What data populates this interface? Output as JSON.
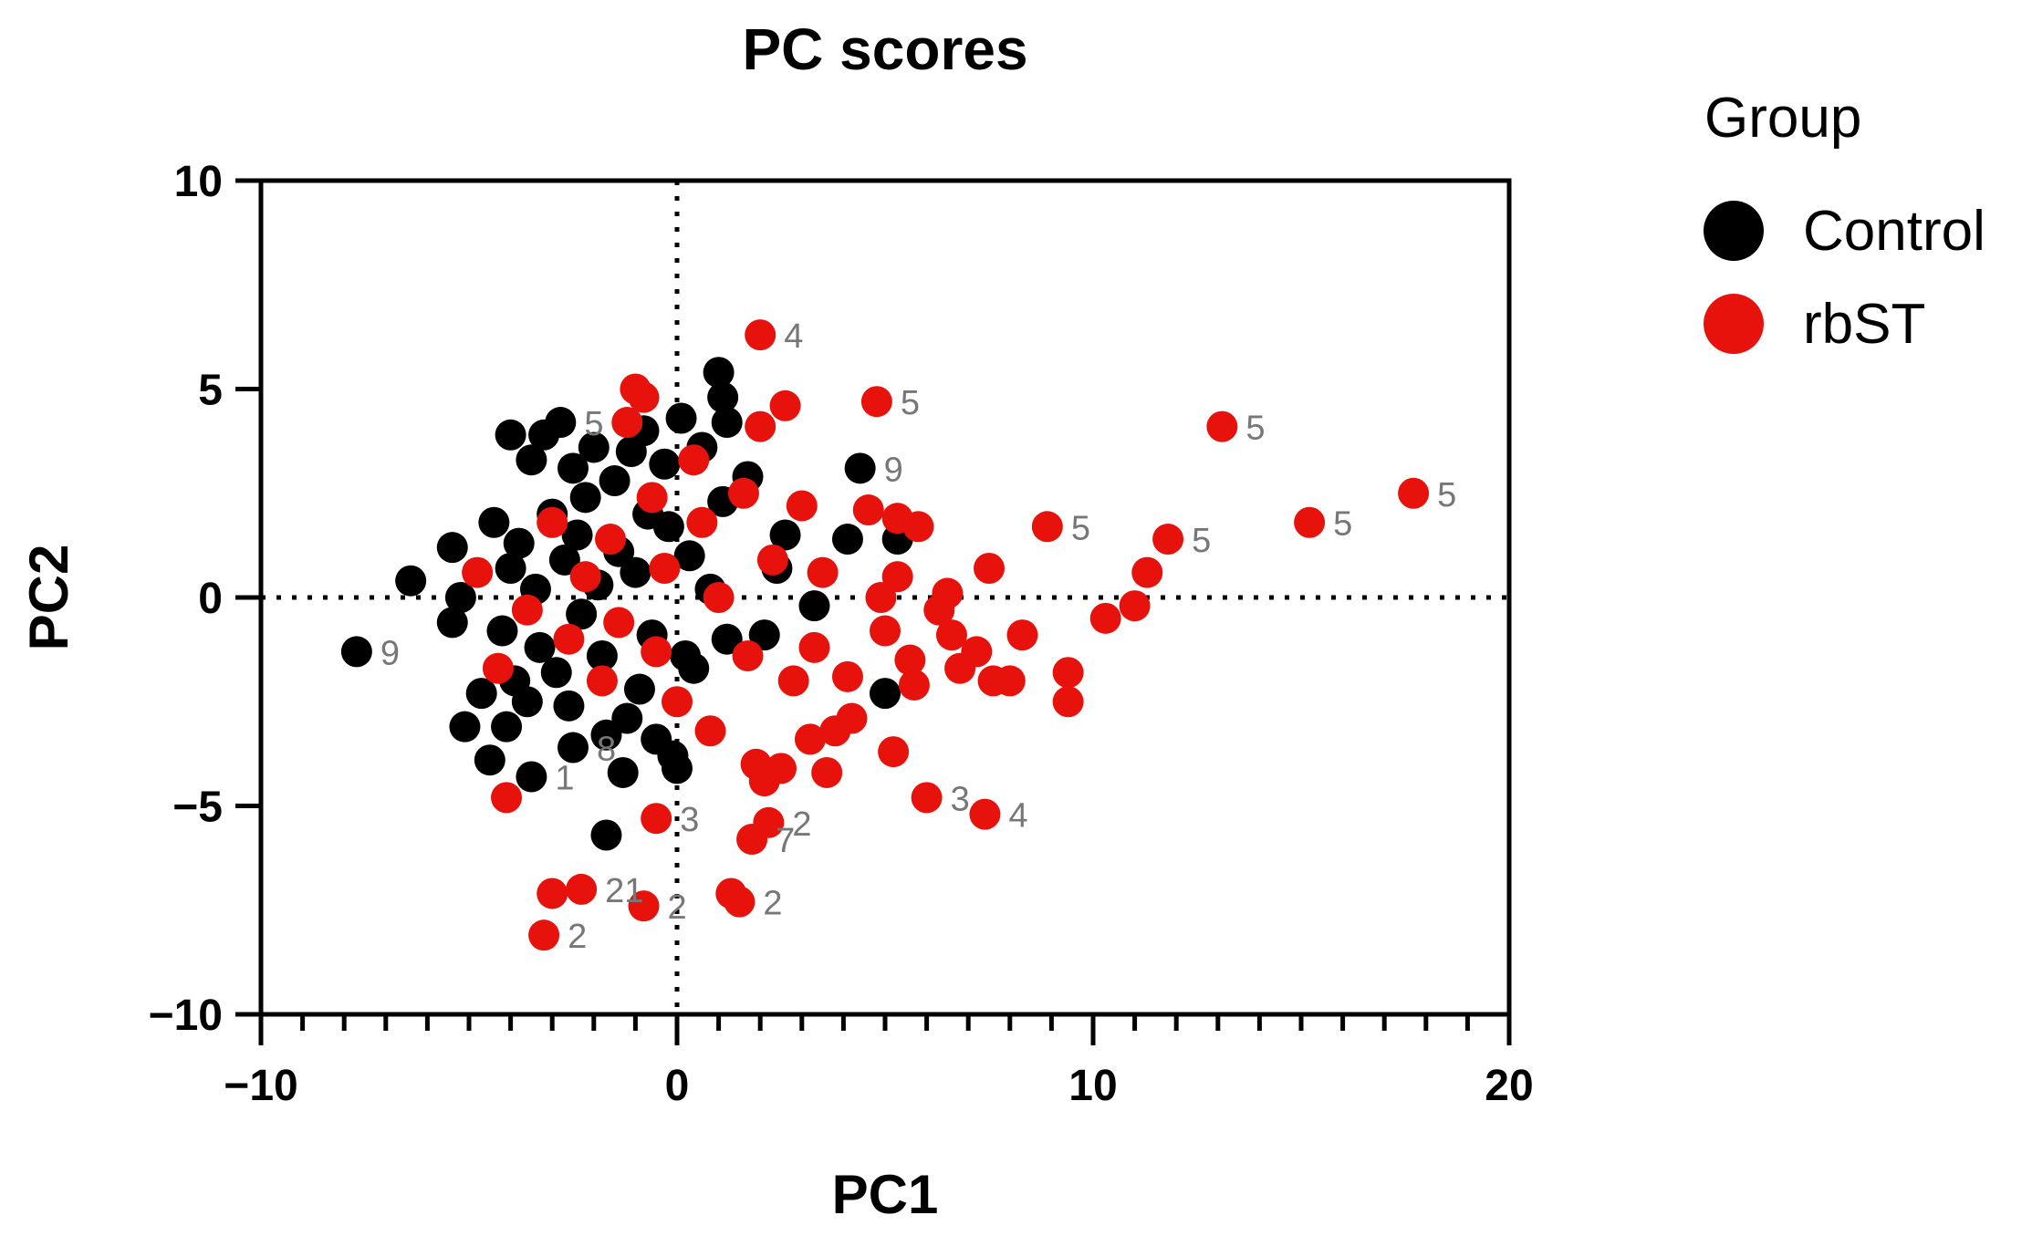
{
  "chart_data": {
    "type": "scatter",
    "title": "PC scores",
    "xlabel": "PC1",
    "ylabel": "PC2",
    "xlim": [
      -10,
      20
    ],
    "ylim": [
      -10,
      10
    ],
    "x_ticks": [
      "−10",
      "0",
      "10",
      "20"
    ],
    "y_ticks": [
      "10",
      "5",
      "0",
      "−5",
      "−10"
    ],
    "reference_lines": {
      "x": 0,
      "y": 0,
      "style": "dotted"
    },
    "legend": {
      "title": "Group",
      "position": "right",
      "entries": [
        {
          "name": "Control",
          "color": "#000000"
        },
        {
          "name": "rbST",
          "color": "#e8120c"
        }
      ]
    },
    "series": [
      {
        "name": "Control",
        "color": "#000000",
        "points": [
          {
            "x": -7.7,
            "y": -1.3,
            "label": "9"
          },
          {
            "x": -6.4,
            "y": 0.4
          },
          {
            "x": -5.4,
            "y": 1.2
          },
          {
            "x": -5.4,
            "y": -0.6
          },
          {
            "x": -5.2,
            "y": 0.0
          },
          {
            "x": -5.1,
            "y": -3.1
          },
          {
            "x": -4.7,
            "y": -2.3
          },
          {
            "x": -4.5,
            "y": -3.9
          },
          {
            "x": -4.4,
            "y": 1.8
          },
          {
            "x": -4.2,
            "y": -0.8
          },
          {
            "x": -4.1,
            "y": -3.1
          },
          {
            "x": -4.0,
            "y": 3.9
          },
          {
            "x": -4.0,
            "y": 0.7
          },
          {
            "x": -3.9,
            "y": -2.0
          },
          {
            "x": -3.8,
            "y": 1.3
          },
          {
            "x": -3.6,
            "y": -2.5
          },
          {
            "x": -3.5,
            "y": -4.3,
            "label": "1"
          },
          {
            "x": -3.5,
            "y": 3.3
          },
          {
            "x": -3.4,
            "y": 0.2
          },
          {
            "x": -3.3,
            "y": -1.2
          },
          {
            "x": -3.2,
            "y": 3.9
          },
          {
            "x": -3.0,
            "y": 2.0
          },
          {
            "x": -2.9,
            "y": -1.8
          },
          {
            "x": -2.8,
            "y": 4.2,
            "label": "5"
          },
          {
            "x": -2.7,
            "y": 0.9
          },
          {
            "x": -2.6,
            "y": -2.6
          },
          {
            "x": -2.5,
            "y": -3.6,
            "label": "8"
          },
          {
            "x": -2.5,
            "y": 3.1
          },
          {
            "x": -2.4,
            "y": 1.5
          },
          {
            "x": -2.3,
            "y": -0.4
          },
          {
            "x": -2.2,
            "y": 2.4
          },
          {
            "x": -2.0,
            "y": 3.6
          },
          {
            "x": -1.9,
            "y": 0.3
          },
          {
            "x": -1.8,
            "y": -1.4
          },
          {
            "x": -1.7,
            "y": -3.3
          },
          {
            "x": -1.7,
            "y": -5.7
          },
          {
            "x": -1.5,
            "y": 2.8
          },
          {
            "x": -1.4,
            "y": 1.1
          },
          {
            "x": -1.3,
            "y": -4.2
          },
          {
            "x": -1.2,
            "y": -2.9
          },
          {
            "x": -1.1,
            "y": 3.5
          },
          {
            "x": -1.0,
            "y": 0.6
          },
          {
            "x": -0.9,
            "y": -2.2
          },
          {
            "x": -0.8,
            "y": 4.0
          },
          {
            "x": -0.7,
            "y": 2.0
          },
          {
            "x": -0.6,
            "y": -0.9
          },
          {
            "x": -0.5,
            "y": -3.4
          },
          {
            "x": -0.3,
            "y": 3.2
          },
          {
            "x": -0.2,
            "y": 1.7
          },
          {
            "x": -0.1,
            "y": -3.8
          },
          {
            "x": 0.0,
            "y": -4.1
          },
          {
            "x": 0.1,
            "y": 4.3
          },
          {
            "x": 0.2,
            "y": -1.4
          },
          {
            "x": 0.3,
            "y": 1.0
          },
          {
            "x": 0.4,
            "y": -1.7
          },
          {
            "x": 0.6,
            "y": 3.6
          },
          {
            "x": 0.8,
            "y": 0.2
          },
          {
            "x": 1.0,
            "y": 5.4
          },
          {
            "x": 1.1,
            "y": 4.8
          },
          {
            "x": 1.1,
            "y": 2.3
          },
          {
            "x": 1.2,
            "y": 4.2
          },
          {
            "x": 1.2,
            "y": -1.0
          },
          {
            "x": 1.7,
            "y": 2.9
          },
          {
            "x": 2.1,
            "y": -0.9
          },
          {
            "x": 2.6,
            "y": 1.5
          },
          {
            "x": 2.4,
            "y": 0.7
          },
          {
            "x": 3.3,
            "y": -0.2
          },
          {
            "x": 4.1,
            "y": 1.4
          },
          {
            "x": 4.4,
            "y": 3.1,
            "label": "9"
          },
          {
            "x": 5.0,
            "y": -2.3
          },
          {
            "x": 5.3,
            "y": 1.4
          }
        ]
      },
      {
        "name": "rbST",
        "color": "#e8120c",
        "points": [
          {
            "x": -4.8,
            "y": 0.6
          },
          {
            "x": -4.3,
            "y": -1.7
          },
          {
            "x": -4.1,
            "y": -4.8
          },
          {
            "x": -3.6,
            "y": -0.3
          },
          {
            "x": -3.2,
            "y": -8.1,
            "label": "2"
          },
          {
            "x": -3.0,
            "y": -7.1
          },
          {
            "x": -3.0,
            "y": 1.8
          },
          {
            "x": -2.6,
            "y": -1.0
          },
          {
            "x": -2.3,
            "y": -7.0,
            "label": "21"
          },
          {
            "x": -2.2,
            "y": 0.5
          },
          {
            "x": -1.8,
            "y": -2.0
          },
          {
            "x": -1.6,
            "y": 1.4
          },
          {
            "x": -1.4,
            "y": -0.6
          },
          {
            "x": -1.2,
            "y": 4.2
          },
          {
            "x": -1.0,
            "y": 5.0
          },
          {
            "x": -0.8,
            "y": -7.4,
            "label": "2"
          },
          {
            "x": -0.8,
            "y": 4.8
          },
          {
            "x": -0.6,
            "y": 2.4
          },
          {
            "x": -0.5,
            "y": -1.3
          },
          {
            "x": -0.5,
            "y": -5.3,
            "label": "3"
          },
          {
            "x": -0.3,
            "y": 0.7
          },
          {
            "x": 0.0,
            "y": -2.5
          },
          {
            "x": 0.4,
            "y": 3.3
          },
          {
            "x": 0.6,
            "y": 1.8
          },
          {
            "x": 0.8,
            "y": -3.2
          },
          {
            "x": 1.0,
            "y": 0.0
          },
          {
            "x": 1.3,
            "y": -7.1
          },
          {
            "x": 1.5,
            "y": -7.3,
            "label": "2"
          },
          {
            "x": 1.6,
            "y": 2.5
          },
          {
            "x": 1.7,
            "y": -1.4
          },
          {
            "x": 1.8,
            "y": -5.8,
            "label": "7"
          },
          {
            "x": 1.9,
            "y": -4.0
          },
          {
            "x": 2.0,
            "y": 6.3,
            "label": "4"
          },
          {
            "x": 2.0,
            "y": 4.1
          },
          {
            "x": 2.1,
            "y": -4.4
          },
          {
            "x": 2.2,
            "y": -5.4,
            "label": "2"
          },
          {
            "x": 2.3,
            "y": 0.9
          },
          {
            "x": 2.5,
            "y": -4.1
          },
          {
            "x": 2.6,
            "y": 4.6
          },
          {
            "x": 2.8,
            "y": -2.0
          },
          {
            "x": 3.0,
            "y": 2.2
          },
          {
            "x": 3.2,
            "y": -3.4
          },
          {
            "x": 3.3,
            "y": -1.2
          },
          {
            "x": 3.5,
            "y": 0.6
          },
          {
            "x": 3.6,
            "y": -4.2
          },
          {
            "x": 3.8,
            "y": -3.2
          },
          {
            "x": 4.1,
            "y": -1.9
          },
          {
            "x": 4.2,
            "y": -2.9
          },
          {
            "x": 4.6,
            "y": 2.1
          },
          {
            "x": 4.8,
            "y": 4.7,
            "label": "5"
          },
          {
            "x": 4.9,
            "y": 0.0
          },
          {
            "x": 5.0,
            "y": -0.8
          },
          {
            "x": 5.2,
            "y": -3.7
          },
          {
            "x": 5.3,
            "y": 1.9
          },
          {
            "x": 5.3,
            "y": 0.5
          },
          {
            "x": 5.6,
            "y": -1.5
          },
          {
            "x": 5.7,
            "y": -2.1
          },
          {
            "x": 5.8,
            "y": 1.7
          },
          {
            "x": 6.0,
            "y": -4.8,
            "label": "3"
          },
          {
            "x": 6.3,
            "y": -0.3
          },
          {
            "x": 6.5,
            "y": 0.1
          },
          {
            "x": 6.6,
            "y": -0.9
          },
          {
            "x": 6.8,
            "y": -1.7
          },
          {
            "x": 7.2,
            "y": -1.3
          },
          {
            "x": 7.4,
            "y": -5.2,
            "label": "4"
          },
          {
            "x": 7.5,
            "y": 0.7
          },
          {
            "x": 7.6,
            "y": -2.0
          },
          {
            "x": 8.0,
            "y": -2.0
          },
          {
            "x": 8.3,
            "y": -0.9
          },
          {
            "x": 8.9,
            "y": 1.7,
            "label": "5"
          },
          {
            "x": 9.4,
            "y": -1.8
          },
          {
            "x": 9.4,
            "y": -2.5
          },
          {
            "x": 10.3,
            "y": -0.5
          },
          {
            "x": 11.0,
            "y": -0.2
          },
          {
            "x": 11.3,
            "y": 0.6
          },
          {
            "x": 11.8,
            "y": 1.4,
            "label": "5"
          },
          {
            "x": 13.1,
            "y": 4.1,
            "label": "5"
          },
          {
            "x": 15.2,
            "y": 1.8,
            "label": "5"
          },
          {
            "x": 17.7,
            "y": 2.5,
            "label": "5"
          }
        ]
      }
    ]
  }
}
